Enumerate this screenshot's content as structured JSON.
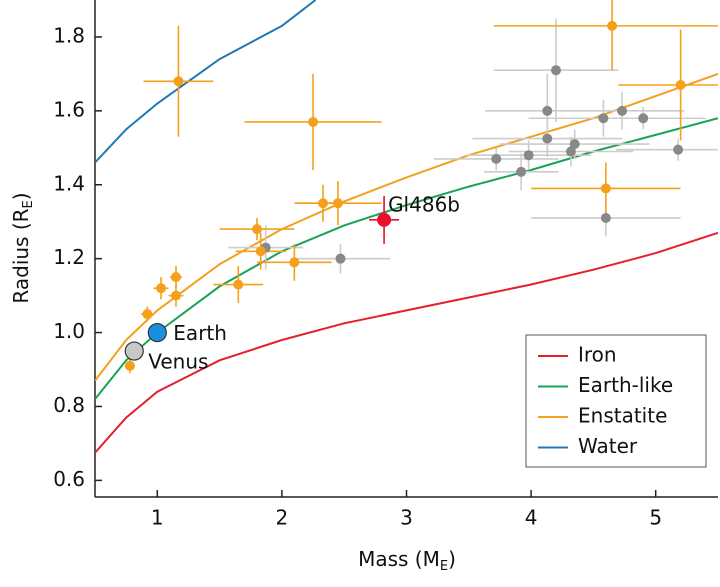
{
  "chart_data": {
    "type": "scatter",
    "xlabel": [
      "Mass (M",
      "E",
      ")"
    ],
    "ylabel": [
      "Radius (R",
      "E",
      ")"
    ],
    "xlim": [
      0.5,
      5.5
    ],
    "ylim": [
      0.555,
      1.9
    ],
    "xticks": [
      1,
      2,
      3,
      4,
      5
    ],
    "yticks": [
      0.6,
      0.8,
      {
        "value": 1,
        "label": "1.0"
      },
      1.2,
      1.4,
      1.6,
      1.8
    ],
    "legend": "lower right",
    "series": [
      {
        "name": "Iron",
        "color": "#e4202e",
        "x": [
          0.5,
          0.75,
          1,
          1.5,
          2,
          2.5,
          3,
          3.5,
          4,
          4.5,
          5,
          5.5
        ],
        "values": [
          0.675,
          0.77,
          0.84,
          0.925,
          0.98,
          1.025,
          1.06,
          1.095,
          1.13,
          1.17,
          1.215,
          1.27
        ]
      },
      {
        "name": "Earth-like",
        "color": "#1aa354",
        "x": [
          0.5,
          0.75,
          1,
          1.5,
          2,
          2.5,
          3,
          3.5,
          4,
          4.5,
          5,
          5.5
        ],
        "values": [
          0.82,
          0.925,
          1.0,
          1.125,
          1.22,
          1.29,
          1.345,
          1.395,
          1.44,
          1.49,
          1.535,
          1.58
        ]
      },
      {
        "name": "Enstatite",
        "color": "#f5a01a",
        "x": [
          0.5,
          0.75,
          1,
          1.5,
          2,
          2.5,
          3,
          3.5,
          4,
          4.5,
          5,
          5.5
        ],
        "values": [
          0.87,
          0.98,
          1.06,
          1.185,
          1.28,
          1.355,
          1.42,
          1.48,
          1.53,
          1.58,
          1.64,
          1.7
        ]
      },
      {
        "name": "Water",
        "color": "#1f78b4",
        "x": [
          0.5,
          0.75,
          1,
          1.5,
          2,
          2.27
        ],
        "values": [
          1.46,
          1.55,
          1.62,
          1.74,
          1.83,
          1.9
        ]
      }
    ],
    "points": [
      {
        "color": "#888888",
        "error_color": "#cccccc",
        "x": [
          4.2,
          4.13,
          4.73,
          4.9,
          4.58,
          4.13,
          4.35,
          4.32,
          3.98,
          3.72,
          3.92,
          5.18,
          4.6,
          1.87,
          2.47
        ],
        "values": [
          1.71,
          1.6,
          1.6,
          1.58,
          1.58,
          1.525,
          1.51,
          1.49,
          1.48,
          1.47,
          1.435,
          1.495,
          1.31,
          1.23,
          1.2
        ],
        "xerr": [
          0.5,
          0.5,
          0.5,
          0.5,
          0.6,
          0.6,
          0.6,
          0.5,
          0.5,
          0.5,
          0.3,
          0.5,
          0.6,
          0.3,
          0.4
        ],
        "yerr": [
          0.14,
          0.1,
          0.05,
          0.03,
          0.05,
          0.05,
          0.04,
          0.04,
          0.04,
          0.03,
          0.05,
          0.03,
          0.05,
          0.06,
          0.04
        ]
      },
      {
        "color": "#f5a01a",
        "error_color": "#f5a01a",
        "x": [
          1.17,
          2.25,
          4.65,
          5.2,
          4.6,
          2.33,
          2.45,
          1.8,
          1.83,
          2.1,
          1.65,
          1.15,
          1.03,
          1.15,
          0.92,
          0.78
        ],
        "values": [
          1.68,
          1.57,
          1.83,
          1.67,
          1.39,
          1.35,
          1.35,
          1.28,
          1.22,
          1.19,
          1.13,
          1.15,
          1.12,
          1.1,
          1.05,
          0.91
        ],
        "xerr": [
          0.28,
          0.55,
          0.95,
          0.5,
          0.6,
          0.2,
          0.35,
          0.3,
          0.2,
          0.3,
          0.2,
          0.05,
          0.06,
          0.06,
          0.05,
          0.03
        ],
        "yerr": [
          0.15,
          0.13,
          0.12,
          0.15,
          0.07,
          0.05,
          0.06,
          0.03,
          0.05,
          0.05,
          0.05,
          0.03,
          0.03,
          0.03,
          0.02,
          0.02
        ]
      },
      {
        "name": "Gl486b",
        "color": "#e8102a",
        "error_color": "#e8102a",
        "x": [
          2.82
        ],
        "values": [
          1.305
        ],
        "xerr": [
          0.12
        ],
        "yerr": [
          0.065
        ]
      },
      {
        "name": "Earth",
        "color": "#1a8fe0",
        "x": [
          1
        ],
        "values": [
          1
        ]
      },
      {
        "name": "Venus",
        "color": "#c8c8c8",
        "x": [
          0.815
        ],
        "values": [
          0.95
        ]
      }
    ]
  }
}
